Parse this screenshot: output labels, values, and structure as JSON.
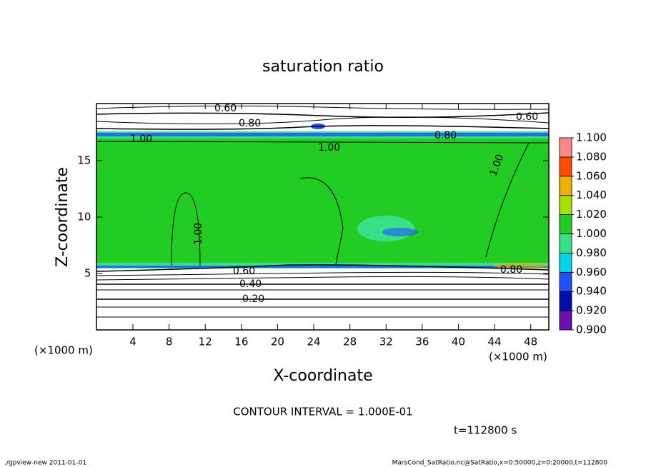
{
  "chart_data": {
    "type": "contour",
    "title": "saturation ratio",
    "x_label": "X-coordinate",
    "y_label": "Z-coordinate",
    "x_unit": "(×1000 m)",
    "y_unit": "(×1000 m)",
    "xlim": [
      0,
      50
    ],
    "xticks": [
      4,
      8,
      12,
      16,
      20,
      24,
      28,
      32,
      36,
      40,
      44,
      48
    ],
    "ylim": [
      0,
      20
    ],
    "yticks": [
      5,
      10,
      15
    ],
    "colorbar": {
      "levels": [
        {
          "value": 0.9,
          "label": "0.900"
        },
        {
          "value": 0.92,
          "label": "0.920"
        },
        {
          "value": 0.94,
          "label": "0.940"
        },
        {
          "value": 0.96,
          "label": "0.960"
        },
        {
          "value": 0.98,
          "label": "0.980"
        },
        {
          "value": 1.0,
          "label": "1.000"
        },
        {
          "value": 1.02,
          "label": "1.020"
        },
        {
          "value": 1.04,
          "label": "1.040"
        },
        {
          "value": 1.06,
          "label": "1.060"
        },
        {
          "value": 1.08,
          "label": "1.080"
        },
        {
          "value": 1.1,
          "label": "1.100"
        }
      ],
      "colors": [
        "#6a10b0",
        "#0010a8",
        "#1e50ff",
        "#00d8e8",
        "#38e088",
        "#22cc22",
        "#a8e000",
        "#f0b000",
        "#ff4a00",
        "#ff8888"
      ]
    },
    "contour_labels": [
      "0.60",
      "0.80",
      "0.60",
      "0.80",
      "1.00",
      "1.00",
      "1.00",
      "1.00",
      "0.80",
      "0.60",
      "0.40",
      "0.20"
    ],
    "contour_interval": "CONTOUR INTERVAL = 1.000E-01",
    "time_label": "t=112800 s",
    "footer_left": "./gpview-new  2011-01-01",
    "footer_right": "MarsCond_SatRatio.nc@SatRatio,x=0:50000,z=0:20000,t=112800"
  }
}
